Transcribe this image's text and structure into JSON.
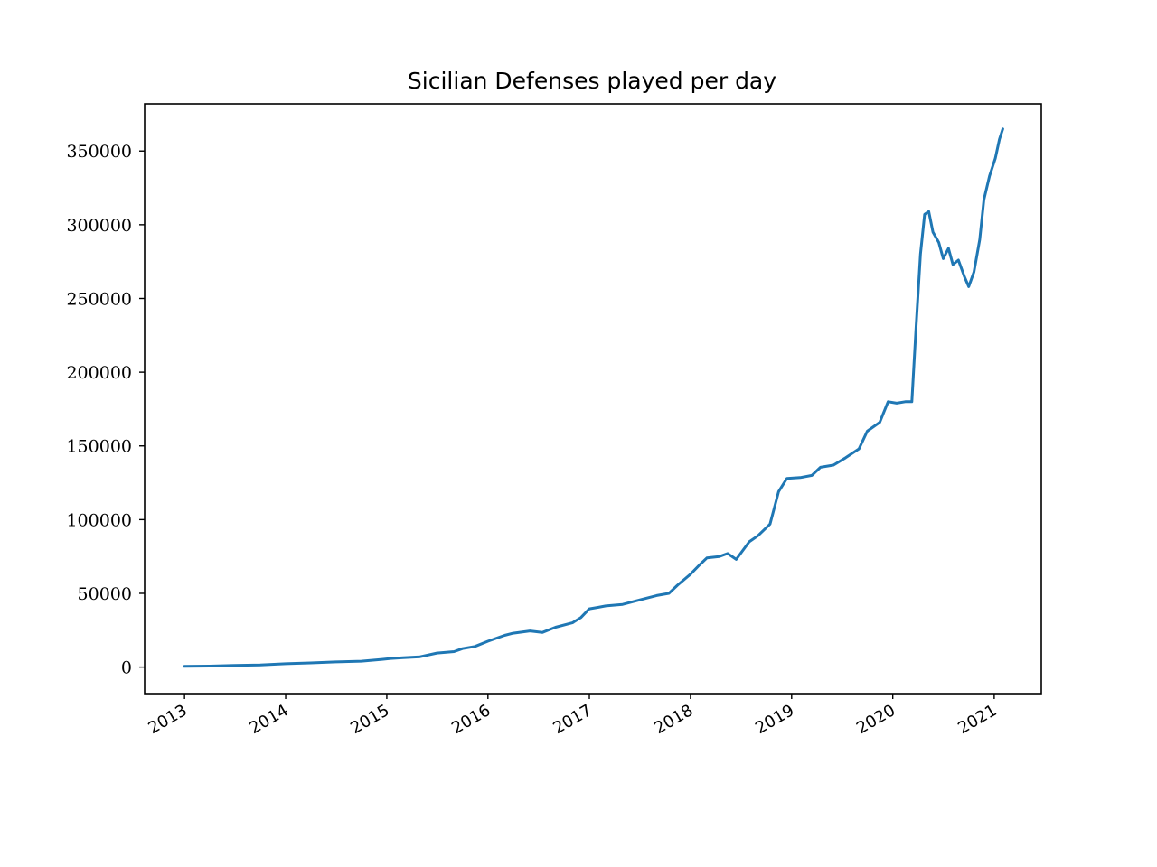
{
  "chart_data": {
    "type": "line",
    "title": "Sicilian Defenses played per day",
    "xlabel": "",
    "ylabel": "",
    "xlim": [
      "2012-08-10",
      "2021-06-20"
    ],
    "ylim": [
      -18000,
      382000
    ],
    "grid": false,
    "legend": "none",
    "x_ticks": [
      "2013",
      "2014",
      "2015",
      "2016",
      "2017",
      "2018",
      "2019",
      "2020",
      "2021"
    ],
    "y_ticks": [
      "0",
      "50000",
      "100000",
      "150000",
      "200000",
      "250000",
      "300000",
      "350000"
    ],
    "series": [
      {
        "color": "#1f77b4",
        "points": [
          [
            "2013-01-01",
            500
          ],
          [
            "2013-04-01",
            700
          ],
          [
            "2013-07-01",
            1200
          ],
          [
            "2013-10-01",
            1500
          ],
          [
            "2014-01-01",
            2300
          ],
          [
            "2014-04-01",
            2800
          ],
          [
            "2014-07-01",
            3500
          ],
          [
            "2014-10-01",
            4000
          ],
          [
            "2014-12-15",
            5200
          ],
          [
            "2015-01-15",
            5800
          ],
          [
            "2015-03-01",
            6300
          ],
          [
            "2015-05-01",
            7000
          ],
          [
            "2015-07-01",
            9500
          ],
          [
            "2015-09-01",
            10500
          ],
          [
            "2015-10-01",
            12500
          ],
          [
            "2015-11-15",
            14000
          ],
          [
            "2016-01-01",
            17500
          ],
          [
            "2016-03-01",
            21500
          ],
          [
            "2016-04-01",
            23000
          ],
          [
            "2016-06-01",
            24500
          ],
          [
            "2016-07-15",
            23500
          ],
          [
            "2016-09-01",
            27000
          ],
          [
            "2016-11-01",
            30000
          ],
          [
            "2016-12-01",
            33500
          ],
          [
            "2017-01-01",
            39500
          ],
          [
            "2017-02-01",
            40500
          ],
          [
            "2017-03-01",
            41500
          ],
          [
            "2017-05-01",
            42500
          ],
          [
            "2017-07-01",
            45500
          ],
          [
            "2017-09-01",
            48500
          ],
          [
            "2017-10-15",
            50000
          ],
          [
            "2017-11-15",
            55500
          ],
          [
            "2018-01-01",
            63000
          ],
          [
            "2018-02-01",
            69000
          ],
          [
            "2018-03-01",
            74000
          ],
          [
            "2018-04-15",
            75000
          ],
          [
            "2018-05-15",
            77000
          ],
          [
            "2018-06-15",
            73000
          ],
          [
            "2018-08-01",
            85000
          ],
          [
            "2018-09-01",
            89000
          ],
          [
            "2018-10-15",
            97000
          ],
          [
            "2018-11-15",
            119000
          ],
          [
            "2018-12-15",
            128000
          ],
          [
            "2019-02-01",
            128500
          ],
          [
            "2019-03-15",
            130000
          ],
          [
            "2019-04-15",
            135500
          ],
          [
            "2019-06-01",
            137000
          ],
          [
            "2019-07-15",
            142000
          ],
          [
            "2019-09-01",
            148000
          ],
          [
            "2019-10-01",
            160000
          ],
          [
            "2019-11-15",
            166000
          ],
          [
            "2019-12-15",
            180000
          ],
          [
            "2020-01-15",
            179000
          ],
          [
            "2020-02-15",
            180000
          ],
          [
            "2020-03-10",
            180000
          ],
          [
            "2020-03-25",
            230000
          ],
          [
            "2020-04-10",
            280000
          ],
          [
            "2020-04-25",
            307000
          ],
          [
            "2020-05-10",
            309000
          ],
          [
            "2020-05-25",
            295000
          ],
          [
            "2020-06-15",
            288000
          ],
          [
            "2020-07-01",
            277000
          ],
          [
            "2020-07-20",
            284000
          ],
          [
            "2020-08-05",
            273000
          ],
          [
            "2020-08-25",
            276000
          ],
          [
            "2020-09-15",
            265000
          ],
          [
            "2020-10-01",
            258000
          ],
          [
            "2020-10-20",
            268000
          ],
          [
            "2020-11-10",
            290000
          ],
          [
            "2020-11-25",
            317000
          ],
          [
            "2020-12-15",
            333000
          ],
          [
            "2021-01-05",
            345000
          ],
          [
            "2021-01-20",
            358000
          ],
          [
            "2021-02-01",
            365000
          ]
        ]
      }
    ]
  }
}
